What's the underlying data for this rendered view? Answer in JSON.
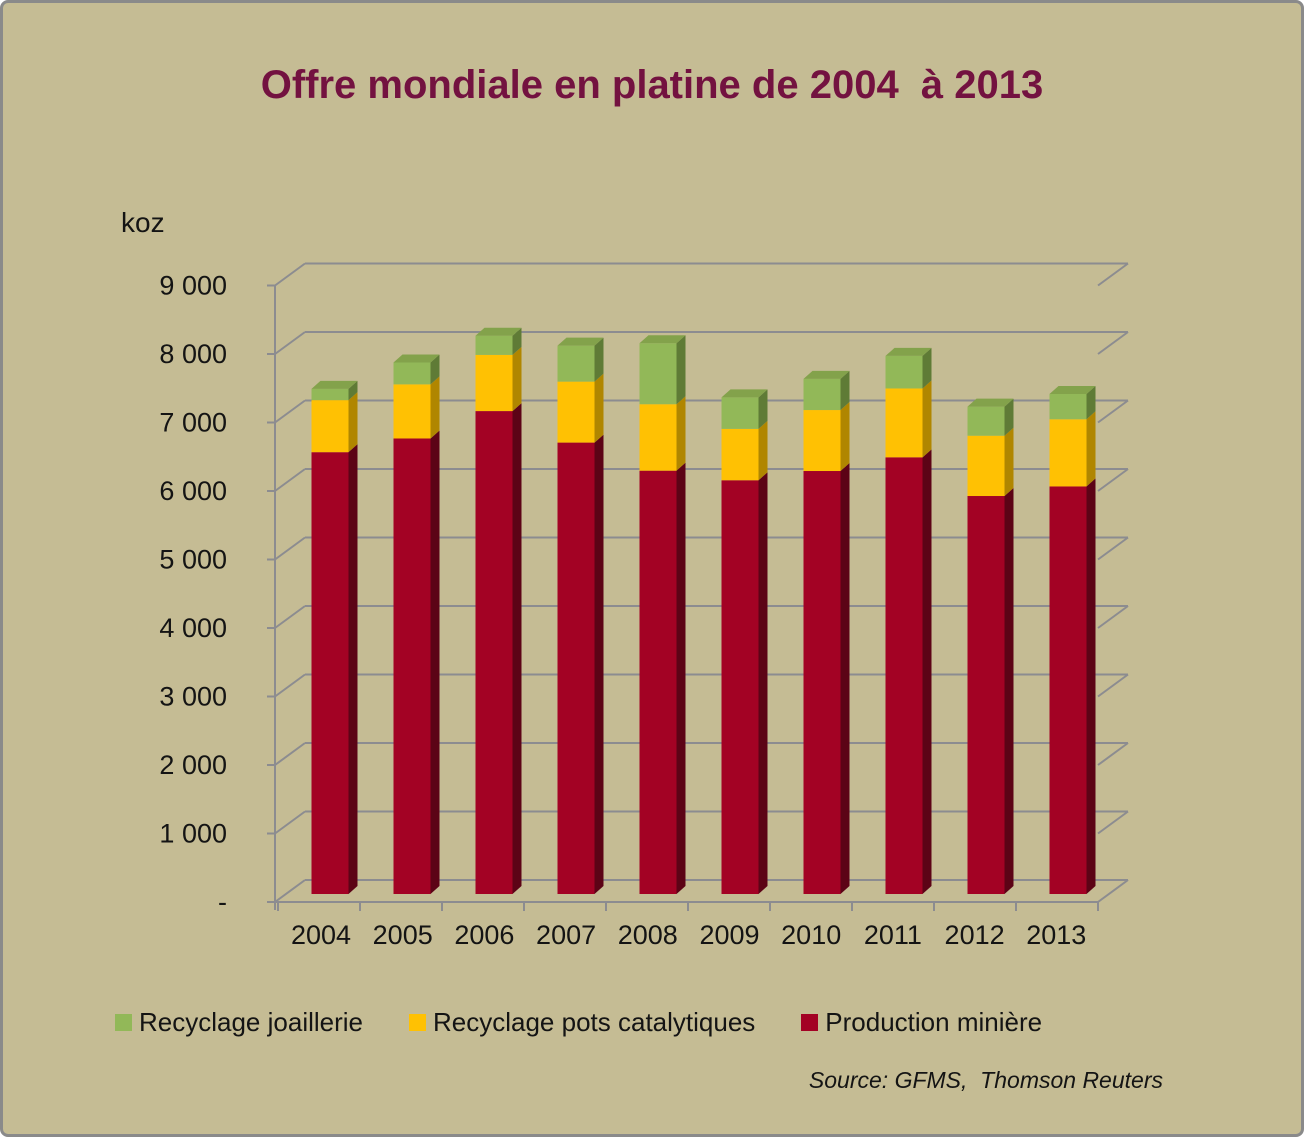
{
  "chart": {
    "title": "Offre mondiale en platine de 2004  à 2013",
    "y_unit": "koz",
    "source": "Source: GFMS,  Thomson Reuters"
  },
  "colors": {
    "background": "#C5BC94",
    "frame_border": "#8A8A8A",
    "title_text": "#731240",
    "gridline": "#8C8C90",
    "axis_text": "#141414",
    "production_miniere": "#A30224",
    "recyclage_pots_catalytiques": "#FFC103",
    "recyclage_joaillerie": "#92B858"
  },
  "chart_data": {
    "type": "bar",
    "stacked": true,
    "effect_3d": true,
    "title": "Offre mondiale en platine de 2004  à 2013",
    "xlabel": "",
    "ylabel": "koz",
    "ylim": [
      0,
      9000
    ],
    "y_tick_step": 1000,
    "grid": true,
    "legend_position": "bottom",
    "source": "Source: GFMS,  Thomson Reuters",
    "categories": [
      "2004",
      "2005",
      "2006",
      "2007",
      "2008",
      "2009",
      "2010",
      "2011",
      "2012",
      "2013"
    ],
    "y_ticks": [
      "-",
      "1 000",
      "2 000",
      "3 000",
      "4 000",
      "5 000",
      "6 000",
      "7 000",
      "8 000",
      "9 000"
    ],
    "series": [
      {
        "name": "Production minière",
        "key": "production-miniere",
        "color": "#A30224",
        "side_color": "#5C0316",
        "top_color": "#7E0220",
        "values": [
          6450,
          6650,
          7050,
          6590,
          6180,
          6040,
          6175,
          6375,
          5810,
          5950
        ]
      },
      {
        "name": "Recyclage pots catalytiques",
        "key": "recyclage-pots-catalytiques",
        "color": "#FFC103",
        "side_color": "#B08600",
        "top_color": "#E0A800",
        "values": [
          760,
          790,
          820,
          890,
          970,
          750,
          890,
          1005,
          880,
          980
        ]
      },
      {
        "name": "Recyclage joaillerie",
        "key": "recyclage-joaillerie",
        "color": "#92B858",
        "side_color": "#5F7B36",
        "top_color": "#83A24B",
        "values": [
          165,
          320,
          280,
          525,
          890,
          460,
          455,
          475,
          425,
          370
        ]
      }
    ]
  }
}
